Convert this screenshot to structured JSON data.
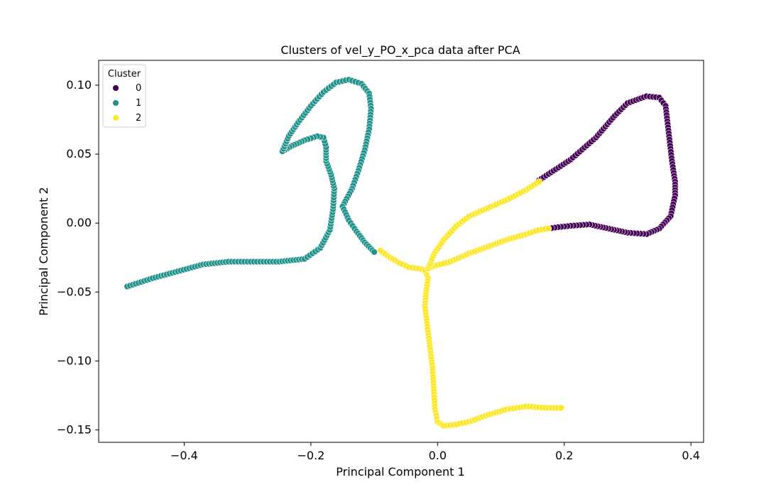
{
  "chart_data": {
    "type": "scatter",
    "title": "Clusters of vel_y_PO_x_pca data after PCA",
    "xlabel": "Principal Component 1",
    "ylabel": "Principal Component 2",
    "xlim": [
      -0.535,
      0.42
    ],
    "ylim": [
      -0.159,
      0.118
    ],
    "x_ticks": [
      -0.4,
      -0.2,
      0.0,
      0.2,
      0.4
    ],
    "x_tick_labels": [
      "−0.4",
      "−0.2",
      "0.0",
      "0.2",
      "0.4"
    ],
    "y_ticks": [
      -0.15,
      -0.1,
      -0.05,
      0.0,
      0.05,
      0.1
    ],
    "y_tick_labels": [
      "−0.15",
      "−0.10",
      "−0.05",
      "0.00",
      "0.05",
      "0.10"
    ],
    "grid": false,
    "legend": {
      "title": "Cluster",
      "placement": "upper-left",
      "entries": [
        "0",
        "1",
        "2"
      ]
    },
    "series": [
      {
        "name": "0",
        "color": "#440154",
        "path": [
          [
            0.16,
            0.031
          ],
          [
            0.21,
            0.046
          ],
          [
            0.25,
            0.062
          ],
          [
            0.28,
            0.078
          ],
          [
            0.3,
            0.087
          ],
          [
            0.33,
            0.092
          ],
          [
            0.35,
            0.091
          ],
          [
            0.36,
            0.085
          ],
          [
            0.365,
            0.065
          ],
          [
            0.37,
            0.045
          ],
          [
            0.375,
            0.03
          ],
          [
            0.375,
            0.02
          ],
          [
            0.368,
            0.005
          ],
          [
            0.35,
            -0.004
          ],
          [
            0.33,
            -0.008
          ],
          [
            0.3,
            -0.007
          ],
          [
            0.27,
            -0.004
          ],
          [
            0.24,
            -0.001
          ],
          [
            0.21,
            -0.002
          ],
          [
            0.19,
            -0.003
          ],
          [
            0.175,
            -0.004
          ]
        ]
      },
      {
        "name": "1",
        "color": "#21918c",
        "path": [
          [
            -0.49,
            -0.046
          ],
          [
            -0.45,
            -0.04
          ],
          [
            -0.41,
            -0.035
          ],
          [
            -0.37,
            -0.03
          ],
          [
            -0.33,
            -0.028
          ],
          [
            -0.29,
            -0.028
          ],
          [
            -0.25,
            -0.028
          ],
          [
            -0.21,
            -0.026
          ],
          [
            -0.185,
            -0.018
          ],
          [
            -0.17,
            -0.005
          ],
          [
            -0.165,
            0.01
          ],
          [
            -0.163,
            0.025
          ],
          [
            -0.168,
            0.035
          ],
          [
            -0.176,
            0.045
          ],
          [
            -0.176,
            0.055
          ],
          [
            -0.18,
            0.062
          ],
          [
            -0.19,
            0.063
          ],
          [
            -0.21,
            0.06
          ],
          [
            -0.23,
            0.056
          ],
          [
            -0.245,
            0.052
          ],
          [
            -0.235,
            0.063
          ],
          [
            -0.22,
            0.073
          ],
          [
            -0.2,
            0.085
          ],
          [
            -0.18,
            0.095
          ],
          [
            -0.16,
            0.102
          ],
          [
            -0.14,
            0.104
          ],
          [
            -0.12,
            0.101
          ],
          [
            -0.108,
            0.094
          ],
          [
            -0.105,
            0.083
          ],
          [
            -0.108,
            0.068
          ],
          [
            -0.115,
            0.053
          ],
          [
            -0.125,
            0.038
          ],
          [
            -0.135,
            0.025
          ],
          [
            -0.15,
            0.012
          ],
          [
            -0.14,
            0.002
          ],
          [
            -0.128,
            -0.006
          ],
          [
            -0.115,
            -0.014
          ],
          [
            -0.1,
            -0.021
          ]
        ]
      },
      {
        "name": "2",
        "color": "#fde725",
        "path": [
          [
            -0.09,
            -0.02
          ],
          [
            -0.075,
            -0.025
          ],
          [
            -0.06,
            -0.029
          ],
          [
            -0.045,
            -0.032
          ],
          [
            -0.03,
            -0.033
          ],
          [
            -0.02,
            -0.034
          ],
          [
            -0.015,
            -0.04
          ],
          [
            -0.018,
            -0.05
          ],
          [
            -0.02,
            -0.06
          ],
          [
            -0.016,
            -0.075
          ],
          [
            -0.012,
            -0.09
          ],
          [
            -0.008,
            -0.105
          ],
          [
            -0.006,
            -0.12
          ],
          [
            -0.004,
            -0.135
          ],
          [
            0.0,
            -0.144
          ],
          [
            0.01,
            -0.147
          ],
          [
            0.03,
            -0.146
          ],
          [
            0.05,
            -0.144
          ],
          [
            0.08,
            -0.139
          ],
          [
            0.11,
            -0.135
          ],
          [
            0.14,
            -0.133
          ],
          [
            0.17,
            -0.134
          ],
          [
            0.195,
            -0.134
          ]
        ],
        "path_b": [
          [
            -0.02,
            -0.034
          ],
          [
            -0.005,
            -0.031
          ],
          [
            0.02,
            -0.028
          ],
          [
            0.05,
            -0.022
          ],
          [
            0.08,
            -0.017
          ],
          [
            0.11,
            -0.012
          ],
          [
            0.14,
            -0.008
          ],
          [
            0.16,
            -0.005
          ],
          [
            0.175,
            -0.004
          ]
        ],
        "path_c": [
          [
            -0.015,
            -0.033
          ],
          [
            -0.005,
            -0.022
          ],
          [
            0.01,
            -0.012
          ],
          [
            0.03,
            -0.002
          ],
          [
            0.05,
            0.005
          ],
          [
            0.08,
            0.011
          ],
          [
            0.11,
            0.017
          ],
          [
            0.14,
            0.024
          ],
          [
            0.16,
            0.03
          ]
        ]
      }
    ]
  }
}
